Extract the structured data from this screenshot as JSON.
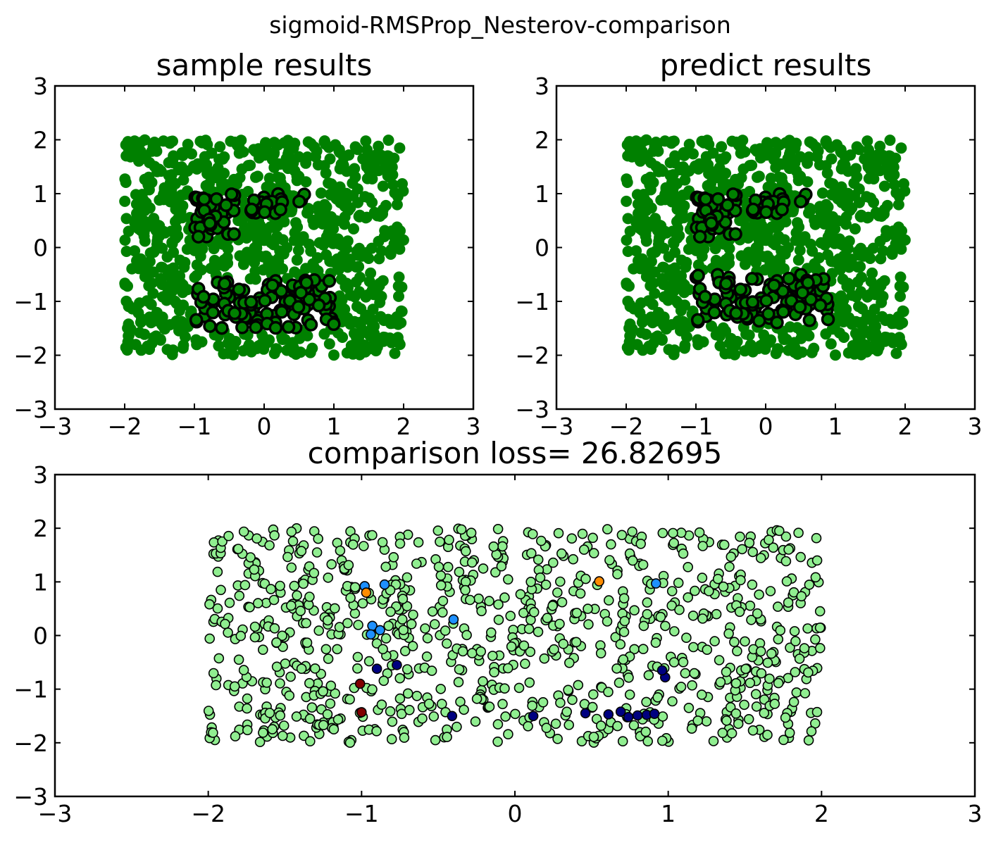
{
  "figure": {
    "suptitle": "sigmoid-RMSProp_Nesterov-comparison",
    "background": "#ffffff"
  },
  "chart_data": [
    {
      "id": "sample",
      "type": "scatter",
      "title": "sample results",
      "xlim": [
        -3,
        3
      ],
      "ylim": [
        -3,
        3
      ],
      "xticks": [
        -3,
        -2,
        -1,
        0,
        1,
        2,
        3
      ],
      "yticks": [
        -3,
        -2,
        -1,
        0,
        1,
        2,
        3
      ],
      "xticklabels": [
        "−3",
        "−2",
        "−1",
        "0",
        "1",
        "2",
        "3"
      ],
      "yticklabels": [
        "−3",
        "−2",
        "−1",
        "0",
        "1",
        "2",
        "3"
      ],
      "grid": false,
      "point_color": "#008000",
      "class_one_edge_color": "#000000",
      "sampling": {
        "count": 1000,
        "x_range": [
          -2,
          2
        ],
        "y_range": [
          -2,
          2
        ],
        "seed": 7
      },
      "class_one_regions": [
        {
          "x": [
            -1.0,
            -0.4
          ],
          "y": [
            0.2,
            1.0
          ]
        },
        {
          "x": [
            -0.2,
            0.3
          ],
          "y": [
            0.6,
            1.0
          ]
        },
        {
          "x": [
            0.5,
            0.8
          ],
          "y": [
            0.8,
            1.0
          ]
        },
        {
          "x": [
            -1.0,
            1.0
          ],
          "y": [
            -1.5,
            -0.6
          ]
        }
      ]
    },
    {
      "id": "predict",
      "type": "scatter",
      "title": "predict results",
      "xlim": [
        -3,
        3
      ],
      "ylim": [
        -3,
        3
      ],
      "xticks": [
        -3,
        -2,
        -1,
        0,
        1,
        2,
        3
      ],
      "yticks": [
        -3,
        -2,
        -1,
        0,
        1,
        2,
        3
      ],
      "xticklabels": [
        "−3",
        "−2",
        "−1",
        "0",
        "1",
        "2",
        "3"
      ],
      "yticklabels": [
        "−3",
        "−2",
        "−1",
        "0",
        "1",
        "2",
        "3"
      ],
      "grid": false,
      "point_color": "#008000",
      "class_one_edge_color": "#000000",
      "sampling": {
        "count": 1000,
        "x_range": [
          -2,
          2
        ],
        "y_range": [
          -2,
          2
        ],
        "seed": 7
      },
      "class_one_regions": [
        {
          "x": [
            -1.0,
            -0.4
          ],
          "y": [
            0.2,
            1.0
          ]
        },
        {
          "x": [
            -0.2,
            0.3
          ],
          "y": [
            0.6,
            1.0
          ]
        },
        {
          "x": [
            0.5,
            0.9
          ],
          "y": [
            0.8,
            1.0
          ]
        },
        {
          "x": [
            -1.0,
            0.9
          ],
          "y": [
            -1.4,
            -0.5
          ]
        }
      ]
    },
    {
      "id": "comparison",
      "type": "scatter",
      "title": "comparison loss= 26.82695",
      "xlim": [
        -3,
        3
      ],
      "ylim": [
        -3,
        3
      ],
      "xticks": [
        -3,
        -2,
        -1,
        0,
        1,
        2,
        3
      ],
      "yticks": [
        -3,
        -2,
        -1,
        0,
        1,
        2,
        3
      ],
      "xticklabels": [
        "−3",
        "−2",
        "−1",
        "0",
        "1",
        "2",
        "3"
      ],
      "yticklabels": [
        "−3",
        "−2",
        "−1",
        "0",
        "1",
        "2",
        "3"
      ],
      "grid": false,
      "point_color": "#90ee90",
      "point_edge_color": "#000000",
      "sampling": {
        "count": 920,
        "x_range": [
          -2,
          2
        ],
        "y_range": [
          -2,
          2
        ],
        "seed": 11
      },
      "highlight_points": [
        {
          "x": -0.98,
          "y": 0.92,
          "color": "#1e90ff"
        },
        {
          "x": -0.85,
          "y": 0.95,
          "color": "#1e90ff"
        },
        {
          "x": -0.97,
          "y": 0.8,
          "color": "#ff8c00"
        },
        {
          "x": -0.93,
          "y": 0.18,
          "color": "#1e90ff"
        },
        {
          "x": -0.88,
          "y": 0.1,
          "color": "#1e90ff"
        },
        {
          "x": -0.94,
          "y": 0.02,
          "color": "#1e90ff"
        },
        {
          "x": -0.4,
          "y": 0.3,
          "color": "#1e90ff"
        },
        {
          "x": 0.55,
          "y": 1.01,
          "color": "#ff8c00"
        },
        {
          "x": 0.92,
          "y": 0.97,
          "color": "#1e90ff"
        },
        {
          "x": -0.9,
          "y": -0.62,
          "color": "#000080"
        },
        {
          "x": -0.77,
          "y": -0.55,
          "color": "#000080"
        },
        {
          "x": -1.01,
          "y": -0.9,
          "color": "#800000"
        },
        {
          "x": -1.0,
          "y": -1.43,
          "color": "#800000"
        },
        {
          "x": -0.41,
          "y": -1.5,
          "color": "#000080"
        },
        {
          "x": 0.12,
          "y": -1.5,
          "color": "#000080"
        },
        {
          "x": 0.46,
          "y": -1.45,
          "color": "#000080"
        },
        {
          "x": 0.61,
          "y": -1.47,
          "color": "#000080"
        },
        {
          "x": 0.69,
          "y": -1.42,
          "color": "#000080"
        },
        {
          "x": 0.74,
          "y": -1.52,
          "color": "#000080"
        },
        {
          "x": 0.8,
          "y": -1.49,
          "color": "#000080"
        },
        {
          "x": 0.86,
          "y": -1.48,
          "color": "#000080"
        },
        {
          "x": 0.91,
          "y": -1.46,
          "color": "#000080"
        },
        {
          "x": 0.98,
          "y": -0.78,
          "color": "#000080"
        },
        {
          "x": 0.96,
          "y": -0.65,
          "color": "#000080"
        }
      ]
    }
  ]
}
